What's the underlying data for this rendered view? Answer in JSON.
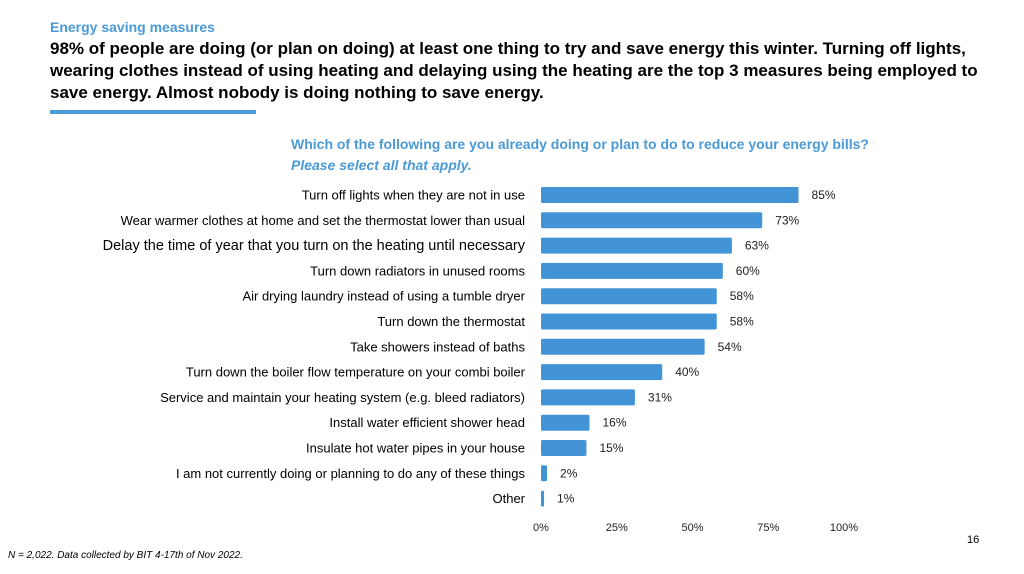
{
  "header": {
    "kicker": "Energy saving measures",
    "headline": "98% of people are doing (or plan on doing) at least one thing to try and save energy this winter. Turning off lights, wearing clothes instead of using heating and delaying using the heating are the top 3 measures being employed to save energy.  Almost nobody is doing nothing to save energy.",
    "question": "Which of the following are you already doing or plan to do to reduce your energy bills?",
    "question_italic": "Please select all that apply."
  },
  "chart_data": {
    "type": "bar",
    "orientation": "horizontal",
    "categories": [
      "Turn off lights when they are not in use",
      "Wear warmer clothes at home and set the thermostat lower than usual",
      "Delay the time of year that you turn on the heating until necessary",
      "Turn down radiators in unused rooms",
      "Air drying laundry instead of using a tumble dryer",
      "Turn down the thermostat",
      "Take showers instead of baths",
      "Turn down the boiler flow temperature on your combi boiler",
      "Service and maintain your heating system (e.g. bleed radiators)",
      "Install water efficient shower head",
      "Insulate hot water pipes in your house",
      "I am not currently doing or planning to do any of these things",
      "Other"
    ],
    "values": [
      85,
      73,
      63,
      60,
      58,
      58,
      54,
      40,
      31,
      16,
      15,
      2,
      1
    ],
    "value_labels": [
      "85%",
      "73%",
      "63%",
      "60%",
      "58%",
      "58%",
      "54%",
      "40%",
      "31%",
      "16%",
      "15%",
      "2%",
      "1%"
    ],
    "xlim": [
      0,
      100
    ],
    "xticks": [
      "0%",
      "25%",
      "50%",
      "75%",
      "100%"
    ],
    "grid": false,
    "bar_color": "#4394d6"
  },
  "footer": {
    "note": "N = 2,022. Data collected by BIT 4-17th of Nov 2022.",
    "page": "16"
  }
}
